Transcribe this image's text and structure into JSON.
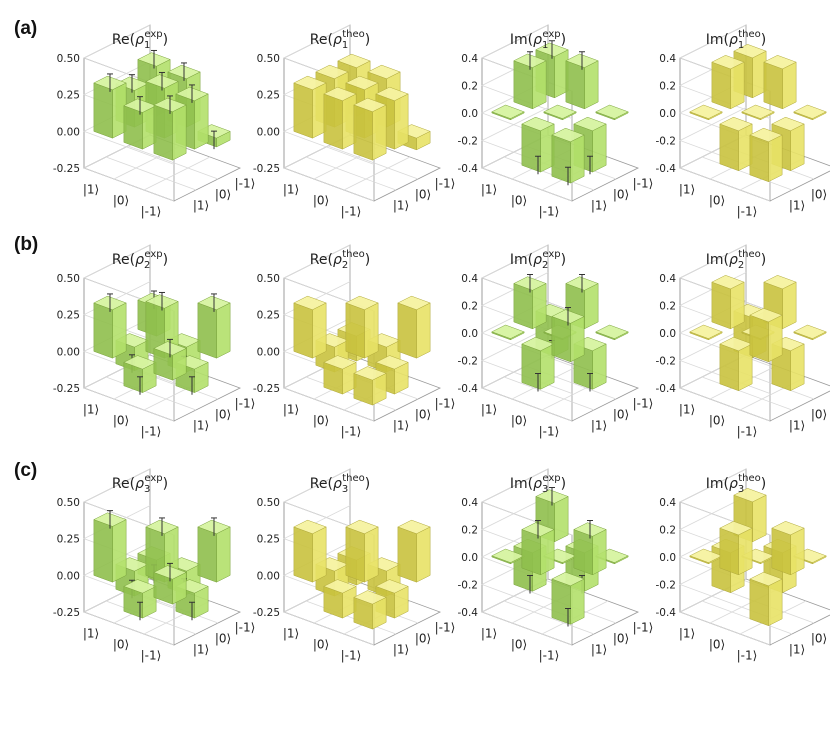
{
  "row_labels": [
    "(a)",
    "(b)",
    "(c)"
  ],
  "ket_labels": [
    "|1⟩",
    "|0⟩",
    "|-1⟩"
  ],
  "colors": {
    "exp_top": "#d6f3a0",
    "exp_left": "#b3e06a",
    "exp_right": "#8fbf4d",
    "exp_edge": "#7aa33c",
    "theo_top": "#f5f2a0",
    "theo_left": "#e8e266",
    "theo_right": "#c9c23e",
    "theo_edge": "#b0a93a",
    "errorbar": "#333333"
  },
  "chart_data": [
    {
      "type": "bar3d",
      "row": 0,
      "title_base": "Re",
      "sub": "1",
      "sup": "exp",
      "kind": "exp",
      "zlim": [
        -0.25,
        0.5
      ],
      "zticks": [
        "-0.25",
        "0.00",
        "0.25",
        "0.50"
      ],
      "zticks_values": [
        -0.25,
        0,
        0.25,
        0.5
      ],
      "matrix": [
        [
          0.33,
          0.25,
          0.34
        ],
        [
          0.25,
          0.34,
          0.33
        ],
        [
          0.33,
          0.33,
          -0.06
        ]
      ],
      "has_error": true
    },
    {
      "type": "bar3d",
      "row": 0,
      "title_base": "Re",
      "sub": "1",
      "sup": "theo",
      "kind": "theo",
      "zlim": [
        -0.25,
        0.5
      ],
      "zticks": [
        "-0.25",
        "0.00",
        "0.25",
        "0.50"
      ],
      "zticks_values": [
        -0.25,
        0,
        0.25,
        0.5
      ],
      "matrix": [
        [
          0.33,
          0.33,
          0.33
        ],
        [
          0.33,
          0.33,
          0.33
        ],
        [
          0.33,
          0.33,
          -0.08
        ]
      ],
      "has_error": false
    },
    {
      "type": "bar3d",
      "row": 0,
      "title_base": "Im",
      "sub": "1",
      "sup": "exp",
      "kind": "exp",
      "zlim": [
        -0.4,
        0.4
      ],
      "zticks": [
        "-0.4",
        "-0.2",
        "0.0",
        "0.2",
        "0.4"
      ],
      "zticks_values": [
        -0.4,
        -0.2,
        0,
        0.2,
        0.4
      ],
      "matrix": [
        [
          0.0,
          0.3,
          0.3
        ],
        [
          -0.3,
          0.0,
          0.3
        ],
        [
          -0.3,
          -0.3,
          0.0
        ]
      ],
      "has_error": true
    },
    {
      "type": "bar3d",
      "row": 0,
      "title_base": "Im",
      "sub": "1",
      "sup": "theo",
      "kind": "theo",
      "zlim": [
        -0.4,
        0.4
      ],
      "zticks": [
        "-0.4",
        "-0.2",
        "0.0",
        "0.2",
        "0.4"
      ],
      "zticks_values": [
        -0.4,
        -0.2,
        0,
        0.2,
        0.4
      ],
      "matrix": [
        [
          0.0,
          0.29,
          0.29
        ],
        [
          -0.29,
          0.0,
          0.29
        ],
        [
          -0.29,
          -0.29,
          0.0
        ]
      ],
      "has_error": false
    },
    {
      "type": "bar3d",
      "row": 1,
      "title_base": "Re",
      "sub": "2",
      "sup": "exp",
      "kind": "exp",
      "zlim": [
        -0.25,
        0.5
      ],
      "zticks": [
        "-0.25",
        "0.00",
        "0.25",
        "0.50"
      ],
      "zticks_values": [
        -0.25,
        0,
        0.25,
        0.5
      ],
      "matrix": [
        [
          0.33,
          -0.16,
          0.2
        ],
        [
          -0.16,
          0.34,
          -0.17
        ],
        [
          0.17,
          -0.16,
          0.33
        ]
      ],
      "has_error": true
    },
    {
      "type": "bar3d",
      "row": 1,
      "title_base": "Re",
      "sub": "2",
      "sup": "theo",
      "kind": "theo",
      "zlim": [
        -0.25,
        0.5
      ],
      "zticks": [
        "-0.25",
        "0.00",
        "0.25",
        "0.50"
      ],
      "zticks_values": [
        -0.25,
        0,
        0.25,
        0.5
      ],
      "matrix": [
        [
          0.33,
          -0.17,
          -0.17
        ],
        [
          -0.17,
          0.33,
          -0.17
        ],
        [
          -0.17,
          -0.17,
          0.33
        ]
      ],
      "has_error": false
    },
    {
      "type": "bar3d",
      "row": 1,
      "title_base": "Im",
      "sub": "2",
      "sup": "exp",
      "kind": "exp",
      "zlim": [
        -0.4,
        0.4
      ],
      "zticks": [
        "-0.4",
        "-0.2",
        "0.0",
        "0.2",
        "0.4"
      ],
      "zticks_values": [
        -0.4,
        -0.2,
        0,
        0.2,
        0.4
      ],
      "matrix": [
        [
          0.0,
          0.28,
          -0.28
        ],
        [
          -0.28,
          0.0,
          0.28
        ],
        [
          0.28,
          -0.28,
          0.0
        ]
      ],
      "has_error": true
    },
    {
      "type": "bar3d",
      "row": 1,
      "title_base": "Im",
      "sub": "2",
      "sup": "theo",
      "kind": "theo",
      "zlim": [
        -0.4,
        0.4
      ],
      "zticks": [
        "-0.4",
        "-0.2",
        "0.0",
        "0.2",
        "0.4"
      ],
      "zticks_values": [
        -0.4,
        -0.2,
        0,
        0.2,
        0.4
      ],
      "matrix": [
        [
          0.0,
          0.29,
          -0.29
        ],
        [
          -0.29,
          0.0,
          0.29
        ],
        [
          0.29,
          -0.29,
          0.0
        ]
      ],
      "has_error": false
    },
    {
      "type": "bar3d",
      "row": 2,
      "title_base": "Re",
      "sub": "3",
      "sup": "exp",
      "kind": "exp",
      "zlim": [
        -0.25,
        0.5
      ],
      "zticks": [
        "-0.25",
        "0.00",
        "0.25",
        "0.50"
      ],
      "zticks_values": [
        -0.25,
        0,
        0.25,
        0.5
      ],
      "matrix": [
        [
          0.38,
          -0.17,
          -0.14
        ],
        [
          -0.17,
          0.33,
          -0.16
        ],
        [
          0.17,
          -0.17,
          0.33
        ]
      ],
      "has_error": true
    },
    {
      "type": "bar3d",
      "row": 2,
      "title_base": "Re",
      "sub": "3",
      "sup": "theo",
      "kind": "theo",
      "zlim": [
        -0.25,
        0.5
      ],
      "zticks": [
        "-0.25",
        "0.00",
        "0.25",
        "0.50"
      ],
      "zticks_values": [
        -0.25,
        0,
        0.25,
        0.5
      ],
      "matrix": [
        [
          0.33,
          -0.17,
          -0.17
        ],
        [
          -0.17,
          0.33,
          -0.17
        ],
        [
          -0.17,
          -0.17,
          0.33
        ]
      ],
      "has_error": false
    },
    {
      "type": "bar3d",
      "row": 2,
      "title_base": "Im",
      "sub": "3",
      "sup": "exp",
      "kind": "exp",
      "zlim": [
        -0.4,
        0.4
      ],
      "zticks": [
        "-0.4",
        "-0.2",
        "0.0",
        "0.2",
        "0.4"
      ],
      "zticks_values": [
        -0.4,
        -0.2,
        0,
        0.2,
        0.4
      ],
      "matrix": [
        [
          0.0,
          -0.28,
          0.28
        ],
        [
          0.28,
          0.0,
          -0.28
        ],
        [
          -0.28,
          0.28,
          0.0
        ]
      ],
      "has_error": true
    },
    {
      "type": "bar3d",
      "row": 2,
      "title_base": "Im",
      "sub": "3",
      "sup": "theo",
      "kind": "theo",
      "zlim": [
        -0.4,
        0.4
      ],
      "zticks": [
        "-0.4",
        "-0.2",
        "0.0",
        "0.2",
        "0.4"
      ],
      "zticks_values": [
        -0.4,
        -0.2,
        0,
        0.2,
        0.4
      ],
      "matrix": [
        [
          0.0,
          -0.29,
          0.29
        ],
        [
          0.29,
          0.0,
          -0.29
        ],
        [
          -0.29,
          0.29,
          0.0
        ]
      ],
      "has_error": false
    }
  ]
}
